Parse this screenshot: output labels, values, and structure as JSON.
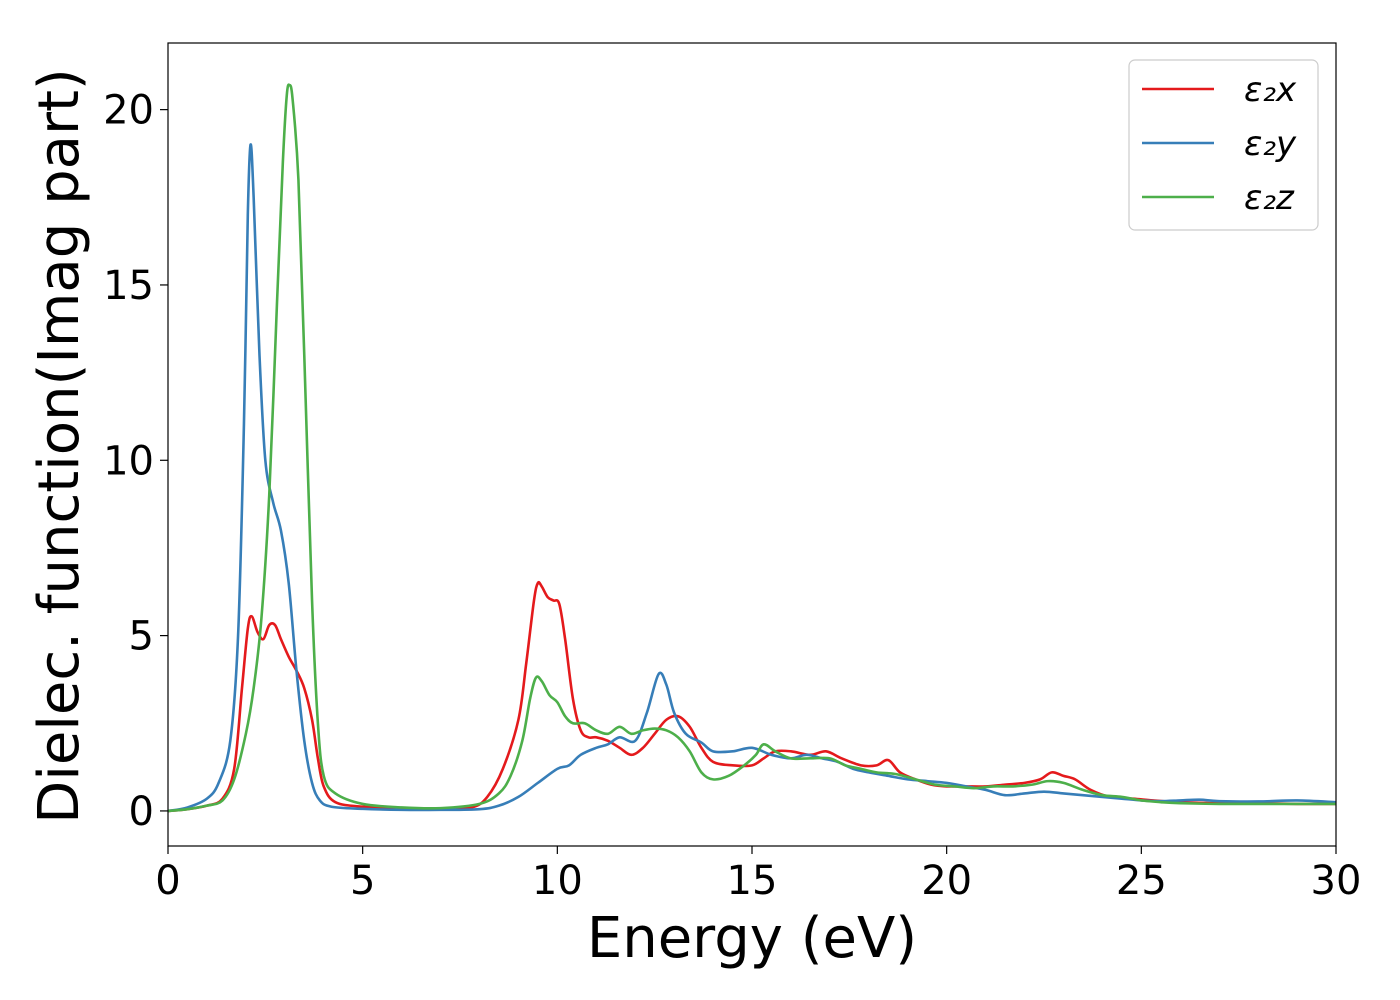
{
  "chart_data": {
    "type": "line",
    "title": "",
    "xlabel": "Energy (eV)",
    "ylabel": "Dielec. function(Imag part)",
    "xlim": [
      0,
      30
    ],
    "ylim": [
      -1,
      21.9
    ],
    "xticks": [
      0,
      5,
      10,
      15,
      20,
      25,
      30
    ],
    "yticks": [
      0,
      5,
      10,
      15,
      20
    ],
    "grid": false,
    "legend_position": "top-right",
    "series": [
      {
        "name": "ε₂x",
        "color": "#e41a1c",
        "points": [
          [
            0,
            0
          ],
          [
            0.5,
            0.05
          ],
          [
            1.0,
            0.15
          ],
          [
            1.4,
            0.35
          ],
          [
            1.7,
            1.2
          ],
          [
            1.9,
            3.5
          ],
          [
            2.05,
            5.2
          ],
          [
            2.15,
            5.55
          ],
          [
            2.3,
            5.1
          ],
          [
            2.45,
            4.9
          ],
          [
            2.6,
            5.3
          ],
          [
            2.75,
            5.3
          ],
          [
            2.9,
            4.9
          ],
          [
            3.1,
            4.4
          ],
          [
            3.3,
            4.0
          ],
          [
            3.5,
            3.5
          ],
          [
            3.7,
            2.6
          ],
          [
            3.85,
            1.5
          ],
          [
            4.0,
            0.7
          ],
          [
            4.3,
            0.25
          ],
          [
            5.0,
            0.12
          ],
          [
            6.0,
            0.08
          ],
          [
            7.0,
            0.07
          ],
          [
            7.8,
            0.1
          ],
          [
            8.2,
            0.4
          ],
          [
            8.6,
            1.2
          ],
          [
            9.0,
            2.6
          ],
          [
            9.2,
            4.2
          ],
          [
            9.4,
            6.0
          ],
          [
            9.5,
            6.5
          ],
          [
            9.6,
            6.4
          ],
          [
            9.75,
            6.1
          ],
          [
            9.9,
            6.0
          ],
          [
            10.05,
            5.9
          ],
          [
            10.2,
            4.9
          ],
          [
            10.4,
            3.2
          ],
          [
            10.6,
            2.3
          ],
          [
            10.8,
            2.1
          ],
          [
            11.0,
            2.1
          ],
          [
            11.3,
            2.0
          ],
          [
            11.6,
            1.8
          ],
          [
            11.9,
            1.6
          ],
          [
            12.2,
            1.8
          ],
          [
            12.5,
            2.2
          ],
          [
            12.8,
            2.6
          ],
          [
            13.1,
            2.7
          ],
          [
            13.4,
            2.4
          ],
          [
            13.7,
            1.8
          ],
          [
            14.0,
            1.4
          ],
          [
            14.5,
            1.3
          ],
          [
            15.0,
            1.3
          ],
          [
            15.3,
            1.5
          ],
          [
            15.6,
            1.7
          ],
          [
            16.0,
            1.7
          ],
          [
            16.5,
            1.6
          ],
          [
            16.9,
            1.7
          ],
          [
            17.3,
            1.5
          ],
          [
            17.8,
            1.3
          ],
          [
            18.2,
            1.3
          ],
          [
            18.5,
            1.45
          ],
          [
            18.8,
            1.1
          ],
          [
            19.2,
            0.9
          ],
          [
            19.6,
            0.75
          ],
          [
            20.0,
            0.7
          ],
          [
            20.5,
            0.7
          ],
          [
            21.0,
            0.7
          ],
          [
            21.5,
            0.75
          ],
          [
            22.0,
            0.8
          ],
          [
            22.4,
            0.9
          ],
          [
            22.7,
            1.1
          ],
          [
            23.0,
            1.0
          ],
          [
            23.3,
            0.9
          ],
          [
            23.7,
            0.6
          ],
          [
            24.2,
            0.4
          ],
          [
            24.8,
            0.35
          ],
          [
            25.3,
            0.3
          ],
          [
            26.0,
            0.25
          ],
          [
            27.0,
            0.22
          ],
          [
            28.0,
            0.22
          ],
          [
            29.0,
            0.2
          ],
          [
            30.0,
            0.2
          ]
        ]
      },
      {
        "name": "ε₂y",
        "color": "#377eb8",
        "points": [
          [
            0,
            0
          ],
          [
            0.5,
            0.1
          ],
          [
            1.0,
            0.35
          ],
          [
            1.3,
            0.8
          ],
          [
            1.6,
            2.0
          ],
          [
            1.8,
            5.0
          ],
          [
            1.95,
            11.0
          ],
          [
            2.05,
            17.0
          ],
          [
            2.12,
            19.0
          ],
          [
            2.2,
            17.5
          ],
          [
            2.35,
            13.0
          ],
          [
            2.5,
            10.0
          ],
          [
            2.7,
            8.8
          ],
          [
            2.9,
            8.0
          ],
          [
            3.1,
            6.5
          ],
          [
            3.3,
            4.0
          ],
          [
            3.5,
            2.0
          ],
          [
            3.7,
            0.8
          ],
          [
            3.9,
            0.3
          ],
          [
            4.2,
            0.12
          ],
          [
            5.0,
            0.06
          ],
          [
            6.0,
            0.03
          ],
          [
            7.0,
            0.03
          ],
          [
            8.0,
            0.05
          ],
          [
            8.5,
            0.15
          ],
          [
            9.0,
            0.4
          ],
          [
            9.5,
            0.8
          ],
          [
            10.0,
            1.2
          ],
          [
            10.3,
            1.3
          ],
          [
            10.6,
            1.6
          ],
          [
            11.0,
            1.8
          ],
          [
            11.3,
            1.9
          ],
          [
            11.6,
            2.1
          ],
          [
            12.0,
            2.0
          ],
          [
            12.3,
            2.8
          ],
          [
            12.6,
            3.9
          ],
          [
            12.8,
            3.6
          ],
          [
            13.0,
            2.8
          ],
          [
            13.3,
            2.2
          ],
          [
            13.7,
            1.95
          ],
          [
            14.0,
            1.7
          ],
          [
            14.5,
            1.7
          ],
          [
            15.0,
            1.8
          ],
          [
            15.5,
            1.6
          ],
          [
            16.0,
            1.5
          ],
          [
            16.4,
            1.6
          ],
          [
            16.8,
            1.5
          ],
          [
            17.2,
            1.4
          ],
          [
            17.6,
            1.2
          ],
          [
            18.0,
            1.1
          ],
          [
            18.5,
            1.0
          ],
          [
            19.0,
            0.9
          ],
          [
            19.5,
            0.85
          ],
          [
            20.0,
            0.8
          ],
          [
            20.5,
            0.7
          ],
          [
            21.0,
            0.6
          ],
          [
            21.5,
            0.45
          ],
          [
            22.0,
            0.5
          ],
          [
            22.5,
            0.55
          ],
          [
            23.0,
            0.5
          ],
          [
            23.5,
            0.45
          ],
          [
            24.0,
            0.4
          ],
          [
            24.5,
            0.35
          ],
          [
            25.0,
            0.3
          ],
          [
            25.5,
            0.28
          ],
          [
            26.0,
            0.3
          ],
          [
            26.5,
            0.32
          ],
          [
            27.0,
            0.28
          ],
          [
            28.0,
            0.27
          ],
          [
            29.0,
            0.3
          ],
          [
            30.0,
            0.25
          ]
        ]
      },
      {
        "name": "ε₂z",
        "color": "#4daf4a",
        "points": [
          [
            0,
            0
          ],
          [
            0.5,
            0.05
          ],
          [
            1.0,
            0.15
          ],
          [
            1.4,
            0.3
          ],
          [
            1.7,
            0.9
          ],
          [
            2.0,
            2.2
          ],
          [
            2.2,
            3.5
          ],
          [
            2.4,
            5.5
          ],
          [
            2.6,
            9.0
          ],
          [
            2.8,
            14.5
          ],
          [
            2.95,
            18.5
          ],
          [
            3.05,
            20.4
          ],
          [
            3.12,
            20.7
          ],
          [
            3.2,
            20.3
          ],
          [
            3.35,
            18.0
          ],
          [
            3.5,
            13.0
          ],
          [
            3.7,
            6.0
          ],
          [
            3.85,
            2.5
          ],
          [
            4.0,
            1.0
          ],
          [
            4.3,
            0.5
          ],
          [
            5.0,
            0.2
          ],
          [
            6.0,
            0.1
          ],
          [
            7.0,
            0.08
          ],
          [
            8.0,
            0.2
          ],
          [
            8.5,
            0.5
          ],
          [
            8.8,
            1.0
          ],
          [
            9.1,
            2.0
          ],
          [
            9.3,
            3.2
          ],
          [
            9.45,
            3.8
          ],
          [
            9.6,
            3.7
          ],
          [
            9.8,
            3.3
          ],
          [
            10.0,
            3.1
          ],
          [
            10.2,
            2.7
          ],
          [
            10.4,
            2.5
          ],
          [
            10.7,
            2.5
          ],
          [
            11.0,
            2.3
          ],
          [
            11.3,
            2.2
          ],
          [
            11.6,
            2.4
          ],
          [
            11.9,
            2.2
          ],
          [
            12.2,
            2.3
          ],
          [
            12.5,
            2.35
          ],
          [
            12.8,
            2.3
          ],
          [
            13.1,
            2.1
          ],
          [
            13.4,
            1.7
          ],
          [
            13.7,
            1.1
          ],
          [
            14.0,
            0.9
          ],
          [
            14.4,
            1.0
          ],
          [
            14.8,
            1.3
          ],
          [
            15.1,
            1.6
          ],
          [
            15.3,
            1.9
          ],
          [
            15.6,
            1.7
          ],
          [
            16.0,
            1.5
          ],
          [
            16.5,
            1.5
          ],
          [
            17.0,
            1.5
          ],
          [
            17.4,
            1.3
          ],
          [
            17.8,
            1.2
          ],
          [
            18.2,
            1.1
          ],
          [
            18.7,
            1.05
          ],
          [
            19.2,
            0.9
          ],
          [
            19.7,
            0.75
          ],
          [
            20.2,
            0.7
          ],
          [
            20.7,
            0.65
          ],
          [
            21.2,
            0.7
          ],
          [
            21.7,
            0.7
          ],
          [
            22.2,
            0.75
          ],
          [
            22.6,
            0.85
          ],
          [
            23.0,
            0.8
          ],
          [
            23.5,
            0.6
          ],
          [
            24.0,
            0.45
          ],
          [
            24.5,
            0.4
          ],
          [
            25.0,
            0.3
          ],
          [
            25.5,
            0.25
          ],
          [
            26.0,
            0.22
          ],
          [
            27.0,
            0.2
          ],
          [
            28.0,
            0.2
          ],
          [
            29.0,
            0.2
          ],
          [
            30.0,
            0.2
          ]
        ]
      }
    ]
  }
}
